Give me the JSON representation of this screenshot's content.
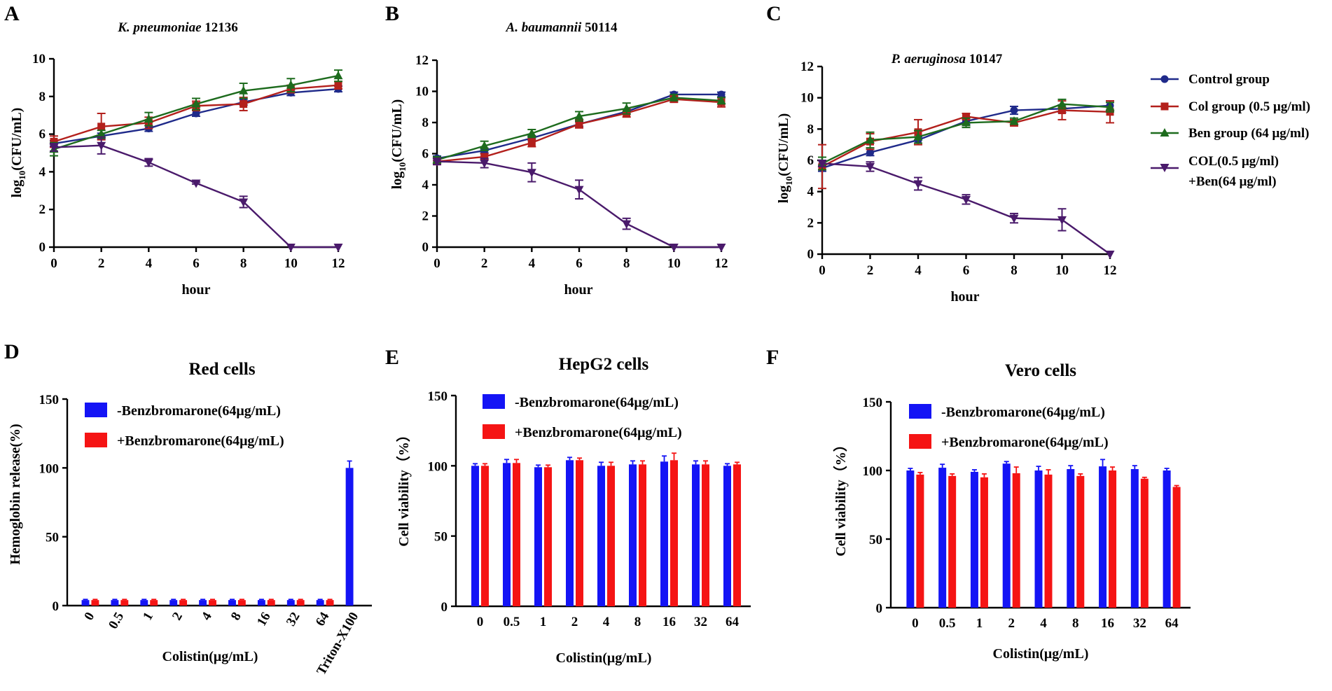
{
  "line_legend": [
    {
      "label": "Control group",
      "lines": [
        "Control group"
      ]
    },
    {
      "label": "Col group (0.5 μg/ml)",
      "lines": [
        "Col group (0.5 μg/ml)"
      ]
    },
    {
      "label": "Ben group (64 μg/ml)",
      "lines": [
        "Ben group (64 μg/ml)"
      ]
    },
    {
      "label": "COL(0.5 μg/ml)+Ben(64 μg/ml)",
      "lines": [
        "COL(0.5 μg/ml)",
        "+Ben(64 μg/ml)"
      ]
    }
  ],
  "bar_legend": [
    "-Benzbromarone(64μg/mL)",
    "+Benzbromarone(64μg/mL)"
  ],
  "chart_data": [
    {
      "id": "A",
      "panel_label": "A",
      "type": "line",
      "title_italic": "K. pneumoniae",
      "title_rest": " 12136",
      "xlabel": "hour",
      "ylabel_base": "log",
      "ylabel_sub": "10",
      "ylabel_tail": "(CFU/mL)",
      "xlim": [
        0,
        12
      ],
      "ylim": [
        0,
        10
      ],
      "xticks": [
        0,
        2,
        4,
        6,
        8,
        10,
        12
      ],
      "yticks": [
        0,
        2,
        4,
        6,
        8,
        10
      ],
      "x": [
        0,
        2,
        4,
        6,
        8,
        10,
        12
      ],
      "series": [
        {
          "name": "Control group",
          "color": "#1f2a8a",
          "marker": "circle",
          "values": [
            5.5,
            5.9,
            6.3,
            7.1,
            7.7,
            8.2,
            8.4
          ],
          "errors": [
            0.15,
            0.15,
            0.15,
            0.15,
            0.15,
            0.15,
            0.15
          ]
        },
        {
          "name": "Col group (0.5 μg/ml)",
          "color": "#b3201c",
          "marker": "square",
          "values": [
            5.6,
            6.4,
            6.6,
            7.5,
            7.6,
            8.4,
            8.6
          ],
          "errors": [
            0.3,
            0.7,
            0.3,
            0.25,
            0.35,
            0.2,
            0.2
          ]
        },
        {
          "name": "Ben group (64 μg/ml)",
          "color": "#1d6b1d",
          "marker": "triangle",
          "values": [
            5.2,
            6.0,
            6.8,
            7.6,
            8.3,
            8.6,
            9.1
          ],
          "errors": [
            0.35,
            0.2,
            0.35,
            0.3,
            0.4,
            0.35,
            0.3
          ]
        },
        {
          "name": "COL(0.5 μg/ml)+Ben(64 μg/ml)",
          "color": "#4a1a6b",
          "marker": "triangle-down",
          "values": [
            5.3,
            5.4,
            4.5,
            3.4,
            2.4,
            0.0,
            0.0
          ],
          "errors": [
            0.2,
            0.45,
            0.2,
            0.05,
            0.3,
            0,
            0
          ]
        }
      ]
    },
    {
      "id": "B",
      "panel_label": "B",
      "type": "line",
      "title_italic": "A. baumannii",
      "title_rest": " 50114",
      "xlabel": "hour",
      "ylabel_base": "log",
      "ylabel_sub": "10",
      "ylabel_tail": "(CFU/mL)",
      "xlim": [
        0,
        12
      ],
      "ylim": [
        0,
        12
      ],
      "xticks": [
        0,
        2,
        4,
        6,
        8,
        10,
        12
      ],
      "yticks": [
        0,
        2,
        4,
        6,
        8,
        10,
        12
      ],
      "x": [
        0,
        2,
        4,
        6,
        8,
        10,
        12
      ],
      "series": [
        {
          "name": "Control group",
          "color": "#1f2a8a",
          "marker": "circle",
          "values": [
            5.7,
            6.2,
            7.0,
            7.9,
            8.7,
            9.8,
            9.8
          ],
          "errors": [
            0.15,
            0.15,
            0.15,
            0.15,
            0.15,
            0.15,
            0.15
          ]
        },
        {
          "name": "Col group (0.5 μg/ml)",
          "color": "#b3201c",
          "marker": "square",
          "values": [
            5.5,
            5.8,
            6.7,
            7.9,
            8.6,
            9.5,
            9.3
          ],
          "errors": [
            0.2,
            0.2,
            0.25,
            0.25,
            0.25,
            0.2,
            0.3
          ]
        },
        {
          "name": "Ben group (64 μg/ml)",
          "color": "#1d6b1d",
          "marker": "triangle",
          "values": [
            5.6,
            6.5,
            7.3,
            8.4,
            8.9,
            9.6,
            9.4
          ],
          "errors": [
            0.2,
            0.3,
            0.25,
            0.3,
            0.35,
            0.2,
            0.2
          ]
        },
        {
          "name": "COL(0.5 μg/ml)+Ben(64 μg/ml)",
          "color": "#4a1a6b",
          "marker": "triangle-down",
          "values": [
            5.5,
            5.4,
            4.8,
            3.7,
            1.5,
            0.0,
            0.0
          ],
          "errors": [
            0.2,
            0.3,
            0.6,
            0.6,
            0.35,
            0,
            0
          ]
        }
      ]
    },
    {
      "id": "C",
      "panel_label": "C",
      "type": "line",
      "title_italic": "P. aeruginosa",
      "title_rest": " 10147",
      "xlabel": "hour",
      "ylabel_base": "log",
      "ylabel_sub": "10",
      "ylabel_tail": "(CFU/mL)",
      "xlim": [
        0,
        12
      ],
      "ylim": [
        0,
        12
      ],
      "xticks": [
        0,
        2,
        4,
        6,
        8,
        10,
        12
      ],
      "yticks": [
        0,
        2,
        4,
        6,
        8,
        10,
        12
      ],
      "x": [
        0,
        2,
        4,
        6,
        8,
        10,
        12
      ],
      "series": [
        {
          "name": "Control group",
          "color": "#1f2a8a",
          "marker": "circle",
          "values": [
            5.5,
            6.5,
            7.3,
            8.5,
            9.2,
            9.3,
            9.5
          ],
          "errors": [
            0.2,
            0.2,
            0.2,
            0.2,
            0.25,
            0.25,
            0.3
          ]
        },
        {
          "name": "Col group (0.5 μg/ml)",
          "color": "#b3201c",
          "marker": "square",
          "values": [
            5.6,
            7.2,
            7.8,
            8.8,
            8.4,
            9.2,
            9.1
          ],
          "errors": [
            1.4,
            0.5,
            0.8,
            0.2,
            0.2,
            0.6,
            0.7
          ]
        },
        {
          "name": "Ben group (64 μg/ml)",
          "color": "#1d6b1d",
          "marker": "triangle",
          "values": [
            5.8,
            7.3,
            7.5,
            8.4,
            8.5,
            9.6,
            9.4
          ],
          "errors": [
            0.4,
            0.5,
            0.4,
            0.3,
            0.2,
            0.3,
            0.3
          ]
        },
        {
          "name": "COL(0.5 μg/ml)+Ben(64 μg/ml)",
          "color": "#4a1a6b",
          "marker": "triangle-down",
          "values": [
            5.8,
            5.6,
            4.5,
            3.5,
            2.3,
            2.2,
            0.0
          ],
          "errors": [
            0.2,
            0.3,
            0.4,
            0.3,
            0.3,
            0.7,
            0
          ]
        }
      ]
    },
    {
      "id": "D",
      "panel_label": "D",
      "type": "bar",
      "title": "Red cells",
      "ylabel": "Hemoglobin release(%)",
      "xlabel": "Colistin(μg/mL)",
      "ylim": [
        0,
        150
      ],
      "yticks": [
        0,
        50,
        100,
        150
      ],
      "rotate_xticks": true,
      "categories": [
        "0",
        "0.5",
        "1",
        "2",
        "4",
        "8",
        "16",
        "32",
        "64",
        "Triton-X100"
      ],
      "series": [
        {
          "name": "-Benzbromarone(64μg/mL)",
          "color": "#1414f5",
          "values": [
            4,
            4,
            4,
            4,
            4,
            4,
            4,
            4,
            4,
            100
          ],
          "errors": [
            0.5,
            0.5,
            0.5,
            0.5,
            0.5,
            0.5,
            0.5,
            0.5,
            0.5,
            5
          ]
        },
        {
          "name": "+Benzbromarone(64μg/mL)",
          "color": "#f51414",
          "values": [
            4,
            4,
            4,
            4,
            4,
            4,
            4,
            4,
            4,
            null
          ],
          "errors": [
            0.5,
            0.5,
            0.5,
            0.5,
            0.5,
            0.5,
            0.5,
            0.5,
            0.5,
            0
          ]
        }
      ]
    },
    {
      "id": "E",
      "panel_label": "E",
      "type": "bar",
      "title": "HepG2 cells",
      "ylabel": "Cell viability（%）",
      "xlabel": "Colistin(μg/mL)",
      "ylim": [
        0,
        150
      ],
      "yticks": [
        0,
        50,
        100,
        150
      ],
      "rotate_xticks": false,
      "categories": [
        "0",
        "0.5",
        "1",
        "2",
        "4",
        "8",
        "16",
        "32",
        "64"
      ],
      "series": [
        {
          "name": "-Benzbromarone(64μg/mL)",
          "color": "#1414f5",
          "values": [
            100,
            102,
            99,
            104,
            100,
            101,
            103,
            101,
            100
          ],
          "errors": [
            1.5,
            2.5,
            1.5,
            2,
            2.5,
            2.5,
            4,
            2.5,
            1.5
          ]
        },
        {
          "name": "+Benzbromarone(64μg/mL)",
          "color": "#f51414",
          "values": [
            100,
            102,
            99,
            104,
            100,
            101,
            104,
            101,
            101
          ],
          "errors": [
            1.5,
            2.5,
            1.5,
            1.5,
            2.5,
            2.5,
            5,
            2.5,
            1.5
          ]
        }
      ]
    },
    {
      "id": "F",
      "panel_label": "F",
      "type": "bar",
      "title": "Vero cells",
      "ylabel": "Cell viability（%）",
      "xlabel": "Colistin(μg/mL)",
      "ylim": [
        0,
        150
      ],
      "yticks": [
        0,
        50,
        100,
        150
      ],
      "rotate_xticks": false,
      "categories": [
        "0",
        "0.5",
        "1",
        "2",
        "4",
        "8",
        "16",
        "32",
        "64"
      ],
      "series": [
        {
          "name": "-Benzbromarone(64μg/mL)",
          "color": "#1414f5",
          "values": [
            100,
            102,
            99,
            105,
            100,
            101,
            103,
            101,
            100
          ],
          "errors": [
            1.5,
            2.5,
            1.5,
            1.5,
            3,
            2.5,
            5,
            2.5,
            1.5
          ]
        },
        {
          "name": "+Benzbromarone(64μg/mL)",
          "color": "#f51414",
          "values": [
            97,
            96,
            95,
            98,
            97,
            96,
            100,
            94,
            88
          ],
          "errors": [
            1.5,
            1.5,
            2.5,
            4.5,
            3.5,
            1.5,
            2.5,
            1,
            1
          ]
        }
      ]
    }
  ]
}
